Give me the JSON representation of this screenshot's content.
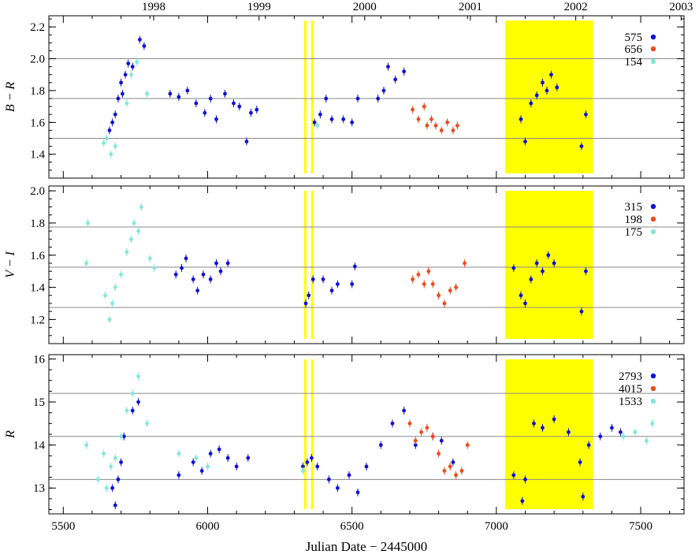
{
  "chart_data": {
    "type": "scatter",
    "xlabel": "Julian Date − 2445000",
    "xlim": [
      5450,
      7650
    ],
    "x_ticks": [
      "5500",
      "6000",
      "6500",
      "7000",
      "7500"
    ],
    "year_labels": [
      {
        "label": "1998",
        "jd": 5813
      },
      {
        "label": "1999",
        "jd": 6178
      },
      {
        "label": "2000",
        "jd": 6544
      },
      {
        "label": "2001",
        "jd": 6910
      },
      {
        "label": "2002",
        "jd": 7275
      },
      {
        "label": "2003",
        "jd": 7640
      }
    ],
    "highlight": {
      "x_range": [
        7030,
        7335
      ],
      "color": "#ffff00"
    },
    "vertical_lines": [
      {
        "x": 6338
      },
      {
        "x": 6362
      }
    ],
    "colors": {
      "blue": "#1010d8",
      "red": "#ee4a1c",
      "cyan": "#7fe8dc",
      "yellow": "#ffff00"
    },
    "panels": [
      {
        "ylabel": "B − R",
        "ylim": [
          2.27,
          1.25
        ],
        "y_ticks": [
          "1.4",
          "1.6",
          "1.8",
          "2.0",
          "2.2"
        ],
        "hlines": [
          1.5,
          1.75,
          2.0
        ],
        "legend": [
          "575",
          "656",
          "154"
        ],
        "series": [
          {
            "color": "blue",
            "count_label": "575",
            "points": [
              [
                5660,
                1.55
              ],
              [
                5670,
                1.6
              ],
              [
                5680,
                1.65
              ],
              [
                5690,
                1.75
              ],
              [
                5700,
                1.85
              ],
              [
                5705,
                1.78
              ],
              [
                5715,
                1.9
              ],
              [
                5725,
                1.97
              ],
              [
                5740,
                1.95
              ],
              [
                5765,
                2.12
              ],
              [
                5780,
                2.08
              ],
              [
                5870,
                1.78
              ],
              [
                5900,
                1.76
              ],
              [
                5930,
                1.8
              ],
              [
                5960,
                1.72
              ],
              [
                5990,
                1.66
              ],
              [
                6010,
                1.75
              ],
              [
                6030,
                1.62
              ],
              [
                6060,
                1.78
              ],
              [
                6090,
                1.72
              ],
              [
                6110,
                1.7
              ],
              [
                6135,
                1.48
              ],
              [
                6150,
                1.66
              ],
              [
                6170,
                1.68
              ],
              [
                6370,
                1.6
              ],
              [
                6390,
                1.65
              ],
              [
                6410,
                1.75
              ],
              [
                6430,
                1.62
              ],
              [
                6470,
                1.62
              ],
              [
                6500,
                1.6
              ],
              [
                6520,
                1.75
              ],
              [
                6590,
                1.75
              ],
              [
                6610,
                1.8
              ],
              [
                6625,
                1.95
              ],
              [
                6650,
                1.87
              ],
              [
                6680,
                1.92
              ],
              [
                7085,
                1.62
              ],
              [
                7100,
                1.48
              ],
              [
                7120,
                1.72
              ],
              [
                7140,
                1.77
              ],
              [
                7160,
                1.85
              ],
              [
                7175,
                1.8
              ],
              [
                7190,
                1.9
              ],
              [
                7210,
                1.82
              ],
              [
                7295,
                1.45
              ],
              [
                7310,
                1.65
              ]
            ]
          },
          {
            "color": "red",
            "count_label": "656",
            "points": [
              [
                6710,
                1.68
              ],
              [
                6730,
                1.62
              ],
              [
                6750,
                1.7
              ],
              [
                6760,
                1.58
              ],
              [
                6775,
                1.62
              ],
              [
                6790,
                1.58
              ],
              [
                6810,
                1.55
              ],
              [
                6830,
                1.6
              ],
              [
                6850,
                1.55
              ],
              [
                6865,
                1.58
              ]
            ]
          },
          {
            "color": "cyan",
            "count_label": "154",
            "points": [
              [
                5640,
                1.47
              ],
              [
                5650,
                1.5
              ],
              [
                5665,
                1.4
              ],
              [
                5680,
                1.45
              ],
              [
                5720,
                1.72
              ],
              [
                5735,
                1.9
              ],
              [
                5755,
                1.98
              ],
              [
                5790,
                1.78
              ],
              [
                6380,
                1.58
              ]
            ]
          }
        ]
      },
      {
        "ylabel": "V − I",
        "ylim": [
          2.03,
          1.05
        ],
        "y_ticks": [
          "1.2",
          "1.4",
          "1.6",
          "1.8",
          "2.0"
        ],
        "hlines": [
          1.275,
          1.525,
          1.775
        ],
        "legend": [
          "315",
          "198",
          "175"
        ],
        "series": [
          {
            "color": "blue",
            "count_label": "315",
            "points": [
              [
                5890,
                1.48
              ],
              [
                5910,
                1.52
              ],
              [
                5925,
                1.58
              ],
              [
                5950,
                1.45
              ],
              [
                5965,
                1.38
              ],
              [
                5985,
                1.48
              ],
              [
                6010,
                1.45
              ],
              [
                6030,
                1.55
              ],
              [
                6045,
                1.5
              ],
              [
                6070,
                1.55
              ],
              [
                6340,
                1.3
              ],
              [
                6350,
                1.35
              ],
              [
                6365,
                1.45
              ],
              [
                6400,
                1.45
              ],
              [
                6430,
                1.38
              ],
              [
                6450,
                1.42
              ],
              [
                6500,
                1.42
              ],
              [
                6510,
                1.53
              ],
              [
                7060,
                1.52
              ],
              [
                7085,
                1.35
              ],
              [
                7100,
                1.3
              ],
              [
                7120,
                1.45
              ],
              [
                7140,
                1.55
              ],
              [
                7160,
                1.5
              ],
              [
                7180,
                1.6
              ],
              [
                7200,
                1.55
              ],
              [
                7295,
                1.25
              ],
              [
                7310,
                1.5
              ]
            ]
          },
          {
            "color": "red",
            "count_label": "198",
            "points": [
              [
                6710,
                1.45
              ],
              [
                6730,
                1.48
              ],
              [
                6750,
                1.42
              ],
              [
                6765,
                1.5
              ],
              [
                6780,
                1.42
              ],
              [
                6800,
                1.35
              ],
              [
                6820,
                1.3
              ],
              [
                6840,
                1.38
              ],
              [
                6860,
                1.4
              ],
              [
                6890,
                1.55
              ]
            ]
          },
          {
            "color": "cyan",
            "count_label": "175",
            "points": [
              [
                5580,
                1.55
              ],
              [
                5585,
                1.8
              ],
              [
                5645,
                1.35
              ],
              [
                5660,
                1.2
              ],
              [
                5670,
                1.3
              ],
              [
                5680,
                1.4
              ],
              [
                5700,
                1.48
              ],
              [
                5720,
                1.62
              ],
              [
                5735,
                1.7
              ],
              [
                5745,
                1.8
              ],
              [
                5760,
                1.75
              ],
              [
                5770,
                1.9
              ],
              [
                5800,
                1.58
              ],
              [
                5815,
                1.52
              ]
            ]
          }
        ]
      },
      {
        "ylabel": "R",
        "ylim": [
          16.1,
          12.4
        ],
        "y_ticks": [
          "13",
          "14",
          "15",
          "16"
        ],
        "hlines": [
          13.2,
          14.2,
          15.2
        ],
        "legend": [
          "2793",
          "4015",
          "1533"
        ],
        "series": [
          {
            "color": "blue",
            "count_label": "2793",
            "points": [
              [
                5670,
                13.0
              ],
              [
                5680,
                12.6
              ],
              [
                5690,
                13.2
              ],
              [
                5700,
                13.6
              ],
              [
                5710,
                14.2
              ],
              [
                5740,
                14.8
              ],
              [
                5760,
                15.0
              ],
              [
                5900,
                13.3
              ],
              [
                5950,
                13.6
              ],
              [
                5980,
                13.4
              ],
              [
                6010,
                13.8
              ],
              [
                6040,
                13.9
              ],
              [
                6070,
                13.7
              ],
              [
                6100,
                13.5
              ],
              [
                6140,
                13.7
              ],
              [
                6330,
                13.5
              ],
              [
                6345,
                13.6
              ],
              [
                6360,
                13.7
              ],
              [
                6380,
                13.5
              ],
              [
                6420,
                13.2
              ],
              [
                6450,
                13.0
              ],
              [
                6490,
                13.3
              ],
              [
                6520,
                12.9
              ],
              [
                6550,
                13.5
              ],
              [
                6600,
                14.0
              ],
              [
                6640,
                14.5
              ],
              [
                6680,
                14.8
              ],
              [
                6720,
                14.0
              ],
              [
                6780,
                14.2
              ],
              [
                6810,
                14.1
              ],
              [
                6850,
                13.6
              ],
              [
                7060,
                13.3
              ],
              [
                7090,
                12.7
              ],
              [
                7100,
                13.2
              ],
              [
                7130,
                14.5
              ],
              [
                7160,
                14.4
              ],
              [
                7200,
                14.6
              ],
              [
                7250,
                14.3
              ],
              [
                7290,
                13.6
              ],
              [
                7300,
                12.8
              ],
              [
                7320,
                14.0
              ],
              [
                7360,
                14.2
              ],
              [
                7400,
                14.4
              ],
              [
                7430,
                14.3
              ]
            ]
          },
          {
            "color": "red",
            "count_label": "4015",
            "points": [
              [
                6700,
                14.5
              ],
              [
                6720,
                14.1
              ],
              [
                6740,
                14.3
              ],
              [
                6760,
                14.4
              ],
              [
                6780,
                14.2
              ],
              [
                6800,
                13.8
              ],
              [
                6820,
                13.4
              ],
              [
                6840,
                13.5
              ],
              [
                6860,
                13.3
              ],
              [
                6880,
                13.4
              ],
              [
                6900,
                14.0
              ]
            ]
          },
          {
            "color": "cyan",
            "count_label": "1533",
            "points": [
              [
                5580,
                14.0
              ],
              [
                5620,
                13.2
              ],
              [
                5640,
                13.8
              ],
              [
                5650,
                13.0
              ],
              [
                5665,
                13.5
              ],
              [
                5680,
                13.7
              ],
              [
                5700,
                14.2
              ],
              [
                5720,
                14.8
              ],
              [
                5740,
                15.2
              ],
              [
                5760,
                15.6
              ],
              [
                5790,
                14.5
              ],
              [
                5900,
                13.8
              ],
              [
                5960,
                13.7
              ],
              [
                6000,
                13.5
              ],
              [
                6330,
                13.4
              ],
              [
                7440,
                14.2
              ],
              [
                7480,
                14.3
              ],
              [
                7520,
                14.1
              ],
              [
                7540,
                14.5
              ]
            ]
          }
        ]
      }
    ]
  }
}
